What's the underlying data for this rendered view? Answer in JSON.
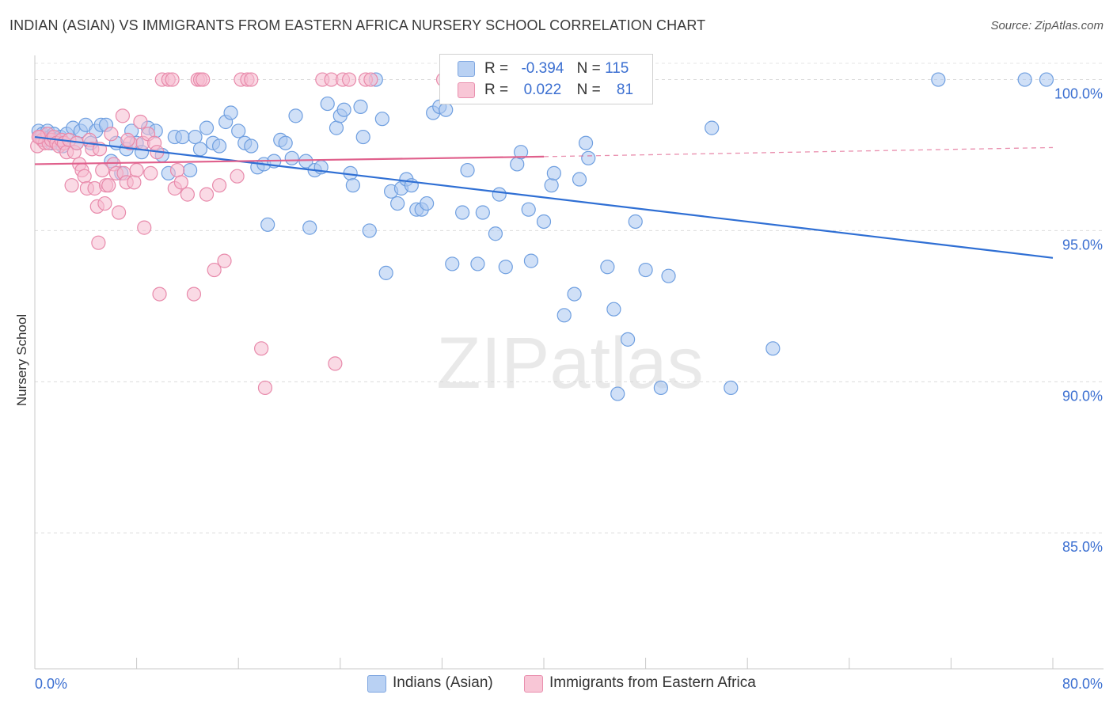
{
  "chart_data": {
    "type": "scatter",
    "title": "INDIAN (ASIAN) VS IMMIGRANTS FROM EASTERN AFRICA NURSERY SCHOOL CORRELATION CHART",
    "source": "Source: ZipAtlas.com",
    "xlabel": "",
    "ylabel": "Nursery School",
    "xlim": [
      0,
      80
    ],
    "ylim": [
      80.5,
      100.8
    ],
    "x_tick_labels": [
      "0.0%",
      "80.0%"
    ],
    "y_ticks": [
      {
        "value": 100,
        "label": "100.0%"
      },
      {
        "value": 95,
        "label": "95.0%"
      },
      {
        "value": 90,
        "label": "90.0%"
      },
      {
        "value": 85,
        "label": "85.0%"
      }
    ],
    "watermark": "ZIPatlas",
    "series": [
      {
        "name": "Indians (Asian)",
        "color": "#6f9fe0",
        "fill": "#a9c6f0",
        "line_color": "#2f6fd4",
        "R": "-0.394",
        "N": "115",
        "trend": {
          "x": [
            0,
            80
          ],
          "y": [
            98.1,
            94.1
          ]
        },
        "points": [
          [
            0.3,
            98.3
          ],
          [
            0.5,
            98.1
          ],
          [
            0.6,
            98.2
          ],
          [
            0.8,
            98.0
          ],
          [
            1.0,
            98.3
          ],
          [
            1.2,
            98.1
          ],
          [
            1.3,
            97.9
          ],
          [
            1.5,
            98.2
          ],
          [
            1.7,
            98.0
          ],
          [
            2.0,
            98.1
          ],
          [
            2.2,
            97.8
          ],
          [
            2.5,
            98.2
          ],
          [
            3.0,
            98.4
          ],
          [
            3.3,
            97.9
          ],
          [
            3.6,
            98.3
          ],
          [
            4.0,
            98.5
          ],
          [
            4.4,
            97.9
          ],
          [
            4.8,
            98.3
          ],
          [
            5.2,
            98.5
          ],
          [
            5.6,
            98.5
          ],
          [
            6.0,
            97.3
          ],
          [
            6.4,
            97.9
          ],
          [
            6.8,
            96.9
          ],
          [
            7.2,
            97.7
          ],
          [
            7.6,
            98.3
          ],
          [
            8.0,
            97.9
          ],
          [
            8.4,
            97.6
          ],
          [
            8.9,
            98.4
          ],
          [
            9.5,
            98.3
          ],
          [
            10.0,
            97.5
          ],
          [
            10.5,
            96.9
          ],
          [
            11.0,
            98.1
          ],
          [
            11.6,
            98.1
          ],
          [
            12.2,
            97.0
          ],
          [
            12.6,
            98.1
          ],
          [
            13.0,
            97.7
          ],
          [
            13.5,
            98.4
          ],
          [
            14.0,
            97.9
          ],
          [
            14.5,
            97.8
          ],
          [
            15.0,
            98.6
          ],
          [
            15.4,
            98.9
          ],
          [
            16.0,
            98.3
          ],
          [
            16.5,
            97.9
          ],
          [
            17.0,
            97.8
          ],
          [
            17.5,
            97.1
          ],
          [
            18.0,
            97.2
          ],
          [
            18.3,
            95.2
          ],
          [
            18.8,
            97.3
          ],
          [
            19.3,
            98.0
          ],
          [
            19.7,
            97.9
          ],
          [
            20.2,
            97.4
          ],
          [
            20.5,
            98.8
          ],
          [
            21.3,
            97.3
          ],
          [
            21.6,
            95.1
          ],
          [
            22.0,
            97.0
          ],
          [
            22.5,
            97.1
          ],
          [
            23.0,
            99.2
          ],
          [
            23.7,
            98.4
          ],
          [
            24.0,
            98.8
          ],
          [
            24.3,
            99.0
          ],
          [
            24.8,
            96.9
          ],
          [
            25.0,
            96.5
          ],
          [
            25.6,
            99.1
          ],
          [
            25.8,
            98.1
          ],
          [
            26.3,
            95.0
          ],
          [
            26.8,
            100.0
          ],
          [
            27.3,
            98.7
          ],
          [
            27.6,
            93.6
          ],
          [
            28.0,
            96.3
          ],
          [
            28.5,
            95.9
          ],
          [
            28.8,
            96.4
          ],
          [
            29.2,
            96.7
          ],
          [
            29.6,
            96.5
          ],
          [
            30.0,
            95.7
          ],
          [
            30.4,
            95.7
          ],
          [
            30.8,
            95.9
          ],
          [
            31.3,
            98.9
          ],
          [
            31.8,
            99.1
          ],
          [
            32.3,
            99.0
          ],
          [
            32.8,
            93.9
          ],
          [
            33.0,
            100.0
          ],
          [
            33.6,
            95.6
          ],
          [
            34.0,
            97.0
          ],
          [
            34.8,
            93.9
          ],
          [
            35.2,
            95.6
          ],
          [
            36.2,
            94.9
          ],
          [
            36.5,
            96.2
          ],
          [
            37.0,
            93.8
          ],
          [
            37.9,
            97.2
          ],
          [
            38.2,
            97.6
          ],
          [
            38.8,
            95.7
          ],
          [
            39.0,
            94.0
          ],
          [
            40.0,
            95.3
          ],
          [
            40.6,
            96.5
          ],
          [
            40.8,
            96.9
          ],
          [
            41.6,
            92.2
          ],
          [
            42.4,
            92.9
          ],
          [
            42.8,
            96.7
          ],
          [
            43.3,
            97.9
          ],
          [
            43.5,
            97.4
          ],
          [
            43.7,
            100.0
          ],
          [
            45.0,
            93.8
          ],
          [
            45.5,
            92.4
          ],
          [
            46.6,
            91.4
          ],
          [
            47.2,
            95.3
          ],
          [
            48.0,
            93.7
          ],
          [
            49.2,
            89.8
          ],
          [
            49.8,
            93.5
          ],
          [
            53.2,
            98.4
          ],
          [
            54.7,
            89.8
          ],
          [
            58.0,
            91.1
          ],
          [
            71.0,
            100.0
          ],
          [
            77.8,
            100.0
          ],
          [
            79.5,
            100.0
          ],
          [
            45.8,
            89.6
          ]
        ]
      },
      {
        "name": "Immigrants from Eastern Africa",
        "color": "#e88aab",
        "fill": "#f5bbcf",
        "line_color": "#e0608c",
        "R": "0.022",
        "N": "81",
        "trend": {
          "x": [
            0,
            40
          ],
          "y": [
            97.2,
            97.45
          ]
        },
        "trend_dashed": {
          "x": [
            40,
            80
          ],
          "y": [
            97.45,
            97.75
          ]
        },
        "points": [
          [
            0.2,
            97.8
          ],
          [
            0.4,
            98.1
          ],
          [
            0.6,
            98.0
          ],
          [
            0.8,
            97.9
          ],
          [
            1.0,
            98.2
          ],
          [
            1.1,
            97.9
          ],
          [
            1.3,
            98.0
          ],
          [
            1.5,
            98.1
          ],
          [
            1.7,
            97.9
          ],
          [
            1.9,
            97.8
          ],
          [
            2.1,
            98.0
          ],
          [
            2.3,
            97.9
          ],
          [
            2.5,
            97.6
          ],
          [
            2.7,
            98.0
          ],
          [
            2.9,
            96.5
          ],
          [
            3.1,
            97.6
          ],
          [
            3.3,
            97.9
          ],
          [
            3.5,
            97.2
          ],
          [
            3.7,
            97.0
          ],
          [
            3.9,
            96.8
          ],
          [
            4.1,
            96.4
          ],
          [
            4.3,
            98.0
          ],
          [
            4.5,
            97.7
          ],
          [
            4.7,
            96.4
          ],
          [
            4.9,
            95.8
          ],
          [
            5.1,
            97.7
          ],
          [
            5.3,
            97.0
          ],
          [
            5.5,
            95.9
          ],
          [
            5.6,
            96.5
          ],
          [
            5.8,
            96.5
          ],
          [
            6.0,
            98.2
          ],
          [
            6.2,
            97.2
          ],
          [
            6.4,
            96.9
          ],
          [
            6.6,
            95.6
          ],
          [
            6.9,
            98.8
          ],
          [
            7.0,
            96.9
          ],
          [
            7.2,
            96.6
          ],
          [
            7.5,
            97.9
          ],
          [
            7.8,
            96.6
          ],
          [
            8.0,
            97.0
          ],
          [
            8.3,
            98.6
          ],
          [
            8.5,
            97.9
          ],
          [
            8.6,
            95.1
          ],
          [
            8.9,
            98.2
          ],
          [
            9.1,
            96.9
          ],
          [
            9.4,
            97.9
          ],
          [
            9.6,
            97.6
          ],
          [
            9.8,
            92.9
          ],
          [
            10.0,
            100.0
          ],
          [
            10.5,
            100.0
          ],
          [
            10.8,
            100.0
          ],
          [
            11.0,
            96.4
          ],
          [
            11.2,
            97.0
          ],
          [
            11.5,
            96.6
          ],
          [
            12.0,
            96.2
          ],
          [
            12.8,
            100.0
          ],
          [
            13.0,
            100.0
          ],
          [
            13.2,
            100.0
          ],
          [
            13.5,
            96.2
          ],
          [
            14.1,
            93.7
          ],
          [
            14.5,
            96.5
          ],
          [
            14.9,
            94.0
          ],
          [
            15.9,
            96.8
          ],
          [
            16.2,
            100.0
          ],
          [
            16.7,
            100.0
          ],
          [
            17.0,
            100.0
          ],
          [
            17.8,
            91.1
          ],
          [
            18.1,
            89.8
          ],
          [
            22.6,
            100.0
          ],
          [
            23.3,
            100.0
          ],
          [
            23.6,
            90.6
          ],
          [
            24.2,
            100.0
          ],
          [
            24.7,
            100.0
          ],
          [
            26.0,
            100.0
          ],
          [
            26.4,
            100.0
          ],
          [
            32.1,
            100.0
          ],
          [
            33.5,
            100.0
          ],
          [
            7.3,
            98.0
          ],
          [
            5.0,
            94.6
          ],
          [
            12.5,
            92.9
          ],
          [
            0.3,
            98.1
          ]
        ]
      }
    ]
  },
  "legend_top": [
    {
      "r_label": "R =",
      "r_value": "-0.394",
      "n_label": "N =",
      "n_value": "115"
    },
    {
      "r_label": "R =",
      "r_value": "0.022",
      "n_label": "N =",
      "n_value": "81"
    }
  ],
  "legend_bottom": [
    "Indians (Asian)",
    "Immigrants from Eastern Africa"
  ]
}
